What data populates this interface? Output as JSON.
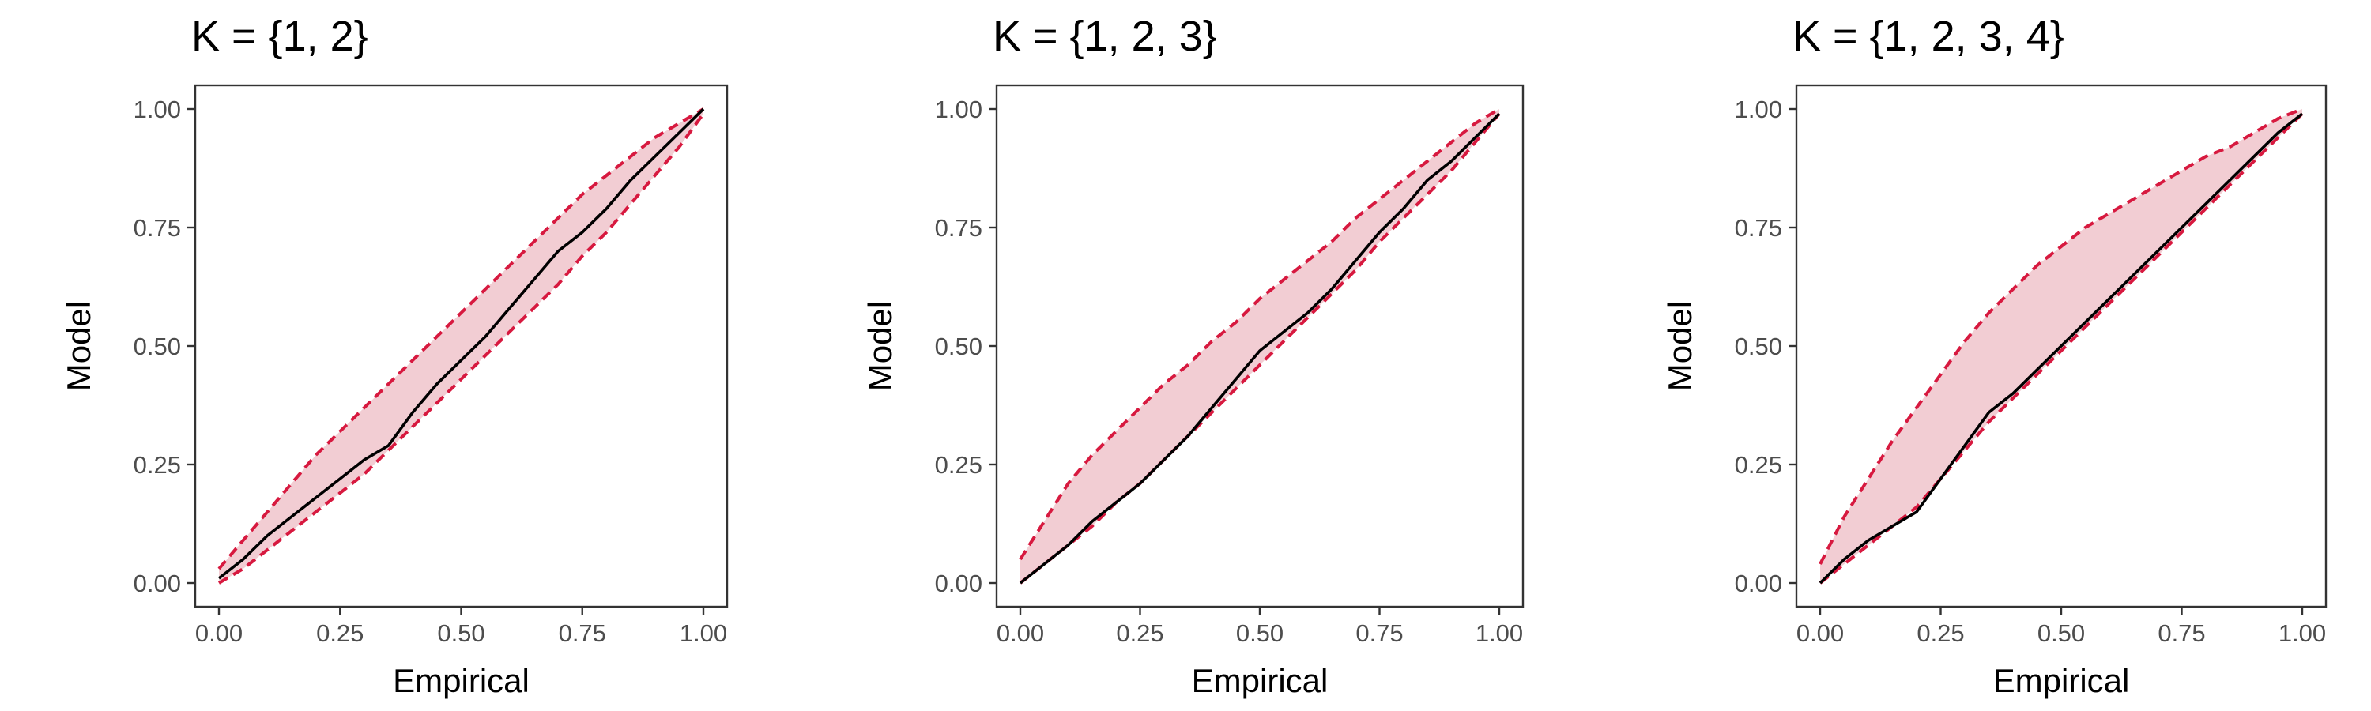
{
  "colors": {
    "band_fill": "#f2cdd3",
    "band_edge": "#d7193f",
    "model_line": "#000000"
  },
  "chart_data": [
    {
      "type": "line",
      "title": "K = {1, 2}",
      "xlabel": "Empirical",
      "ylabel": "Model",
      "xlim": [
        0,
        1
      ],
      "ylim": [
        0,
        1
      ],
      "xticks": [
        "0.00",
        "0.25",
        "0.50",
        "0.75",
        "1.00"
      ],
      "yticks": [
        "0.00",
        "0.25",
        "0.50",
        "0.75",
        "1.00"
      ],
      "grid": false,
      "x": [
        0,
        0.05,
        0.1,
        0.15,
        0.2,
        0.25,
        0.3,
        0.35,
        0.4,
        0.45,
        0.5,
        0.55,
        0.6,
        0.65,
        0.7,
        0.75,
        0.8,
        0.85,
        0.9,
        0.95,
        1
      ],
      "series": [
        {
          "role": "estimate",
          "values": [
            0.01,
            0.05,
            0.1,
            0.14,
            0.18,
            0.22,
            0.26,
            0.29,
            0.36,
            0.42,
            0.47,
            0.52,
            0.58,
            0.64,
            0.7,
            0.74,
            0.79,
            0.85,
            0.9,
            0.95,
            1.0
          ]
        },
        {
          "role": "upper_bound",
          "values": [
            0.03,
            0.09,
            0.15,
            0.21,
            0.27,
            0.32,
            0.37,
            0.42,
            0.47,
            0.52,
            0.57,
            0.62,
            0.67,
            0.72,
            0.77,
            0.82,
            0.86,
            0.9,
            0.94,
            0.97,
            1.0
          ]
        },
        {
          "role": "lower_bound",
          "values": [
            0.0,
            0.03,
            0.07,
            0.11,
            0.15,
            0.19,
            0.23,
            0.28,
            0.33,
            0.38,
            0.43,
            0.48,
            0.53,
            0.58,
            0.63,
            0.69,
            0.74,
            0.8,
            0.86,
            0.92,
            0.99
          ]
        }
      ]
    },
    {
      "type": "line",
      "title": "K = {1, 2, 3}",
      "xlabel": "Empirical",
      "ylabel": "Model",
      "xlim": [
        0,
        1
      ],
      "ylim": [
        0,
        1
      ],
      "xticks": [
        "0.00",
        "0.25",
        "0.50",
        "0.75",
        "1.00"
      ],
      "yticks": [
        "0.00",
        "0.25",
        "0.50",
        "0.75",
        "1.00"
      ],
      "grid": false,
      "x": [
        0,
        0.05,
        0.1,
        0.15,
        0.2,
        0.25,
        0.3,
        0.35,
        0.4,
        0.45,
        0.5,
        0.55,
        0.6,
        0.65,
        0.7,
        0.75,
        0.8,
        0.85,
        0.9,
        0.95,
        1
      ],
      "series": [
        {
          "role": "estimate",
          "values": [
            0.0,
            0.04,
            0.08,
            0.13,
            0.17,
            0.21,
            0.26,
            0.31,
            0.37,
            0.43,
            0.49,
            0.53,
            0.57,
            0.62,
            0.68,
            0.74,
            0.79,
            0.85,
            0.89,
            0.94,
            0.99
          ]
        },
        {
          "role": "upper_bound",
          "values": [
            0.05,
            0.13,
            0.21,
            0.27,
            0.32,
            0.37,
            0.42,
            0.46,
            0.51,
            0.55,
            0.6,
            0.64,
            0.68,
            0.72,
            0.77,
            0.81,
            0.85,
            0.89,
            0.93,
            0.97,
            1.0
          ]
        },
        {
          "role": "lower_bound",
          "values": [
            0.0,
            0.04,
            0.08,
            0.12,
            0.17,
            0.21,
            0.26,
            0.31,
            0.36,
            0.41,
            0.46,
            0.51,
            0.56,
            0.61,
            0.66,
            0.72,
            0.77,
            0.82,
            0.87,
            0.93,
            0.99
          ]
        }
      ]
    },
    {
      "type": "line",
      "title": "K = {1, 2, 3, 4}",
      "xlabel": "Empirical",
      "ylabel": "Model",
      "xlim": [
        0,
        1
      ],
      "ylim": [
        0,
        1
      ],
      "xticks": [
        "0.00",
        "0.25",
        "0.50",
        "0.75",
        "1.00"
      ],
      "yticks": [
        "0.00",
        "0.25",
        "0.50",
        "0.75",
        "1.00"
      ],
      "grid": false,
      "x": [
        0,
        0.05,
        0.1,
        0.15,
        0.2,
        0.25,
        0.3,
        0.35,
        0.4,
        0.45,
        0.5,
        0.55,
        0.6,
        0.65,
        0.7,
        0.75,
        0.8,
        0.85,
        0.9,
        0.95,
        1
      ],
      "series": [
        {
          "role": "estimate",
          "values": [
            0.0,
            0.05,
            0.09,
            0.12,
            0.15,
            0.22,
            0.29,
            0.36,
            0.4,
            0.45,
            0.5,
            0.55,
            0.6,
            0.65,
            0.7,
            0.75,
            0.8,
            0.85,
            0.9,
            0.95,
            0.99
          ]
        },
        {
          "role": "upper_bound",
          "values": [
            0.04,
            0.14,
            0.22,
            0.3,
            0.37,
            0.44,
            0.51,
            0.57,
            0.62,
            0.67,
            0.71,
            0.75,
            0.78,
            0.81,
            0.84,
            0.87,
            0.9,
            0.92,
            0.95,
            0.98,
            1.0
          ]
        },
        {
          "role": "lower_bound",
          "values": [
            0.0,
            0.04,
            0.08,
            0.12,
            0.16,
            0.22,
            0.28,
            0.34,
            0.39,
            0.44,
            0.49,
            0.54,
            0.59,
            0.64,
            0.69,
            0.74,
            0.79,
            0.84,
            0.89,
            0.94,
            0.99
          ]
        }
      ]
    }
  ]
}
